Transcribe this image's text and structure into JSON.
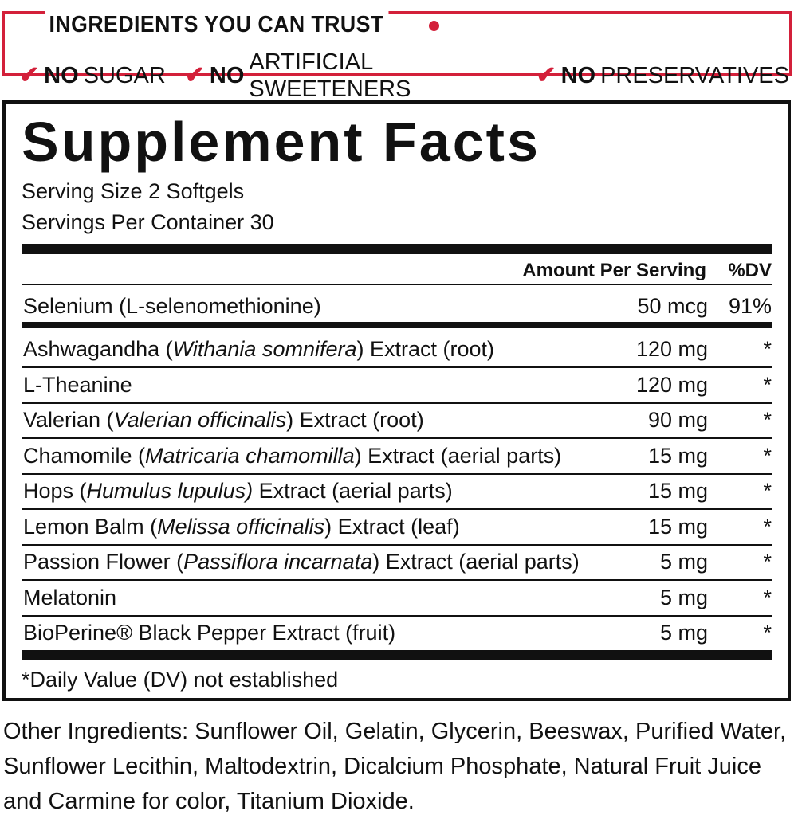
{
  "banner": {
    "title": "INGREDIENTS YOU CAN TRUST",
    "claims": [
      {
        "bold": "NO",
        "text": "SUGAR"
      },
      {
        "bold": "NO",
        "text": "ARTIFICIAL SWEETENERS"
      },
      {
        "bold": "NO",
        "text": "PRESERVATIVES"
      }
    ],
    "accent": "#d3203a"
  },
  "facts": {
    "title": "Supplement Facts",
    "serving_size": "Serving Size 2 Softgels",
    "servings_per_container": "Servings Per Container 30",
    "header_amount": "Amount Per Serving",
    "header_dv": "%DV",
    "selenium": {
      "name": "Selenium (L-selenomethionine)",
      "amount": "50 mcg",
      "dv": "91%"
    },
    "rows": [
      {
        "pre": "Ashwagandha (",
        "it": "Withania somnifera",
        "post": ") Extract (root)",
        "amount": "120 mg",
        "dv": "*"
      },
      {
        "pre": "L-Theanine",
        "it": "",
        "post": "",
        "amount": "120 mg",
        "dv": "*"
      },
      {
        "pre": "Valerian (",
        "it": "Valerian officinalis",
        "post": ") Extract (root)",
        "amount": "90 mg",
        "dv": "*"
      },
      {
        "pre": "Chamomile (",
        "it": "Matricaria chamomilla",
        "post": ") Extract (aerial parts)",
        "amount": "15 mg",
        "dv": "*"
      },
      {
        "pre": "Hops (",
        "it": "Humulus lupulus)",
        "post": " Extract (aerial parts)",
        "amount": "15 mg",
        "dv": "*"
      },
      {
        "pre": "Lemon Balm (",
        "it": "Melissa officinalis",
        "post": ") Extract (leaf)",
        "amount": "15 mg",
        "dv": "*"
      },
      {
        "pre": "Passion Flower (",
        "it": "Passiflora incarnata",
        "post": ") Extract (aerial parts)",
        "amount": "5 mg",
        "dv": "*"
      },
      {
        "pre": "Melatonin",
        "it": "",
        "post": "",
        "amount": "5 mg",
        "dv": "*"
      },
      {
        "pre": "BioPerine® Black Pepper Extract (fruit)",
        "it": "",
        "post": "",
        "amount": "5 mg",
        "dv": "*"
      }
    ],
    "footnote": "*Daily Value (DV) not established"
  },
  "other_ingredients": "Other Ingredients: Sunflower Oil, Gelatin, Glycerin, Beeswax, Purified Water, Sunflower Lecithin, Maltodextrin, Dicalcium Phosphate, Natural Fruit Juice and Carmine for color, Titanium Dioxide."
}
